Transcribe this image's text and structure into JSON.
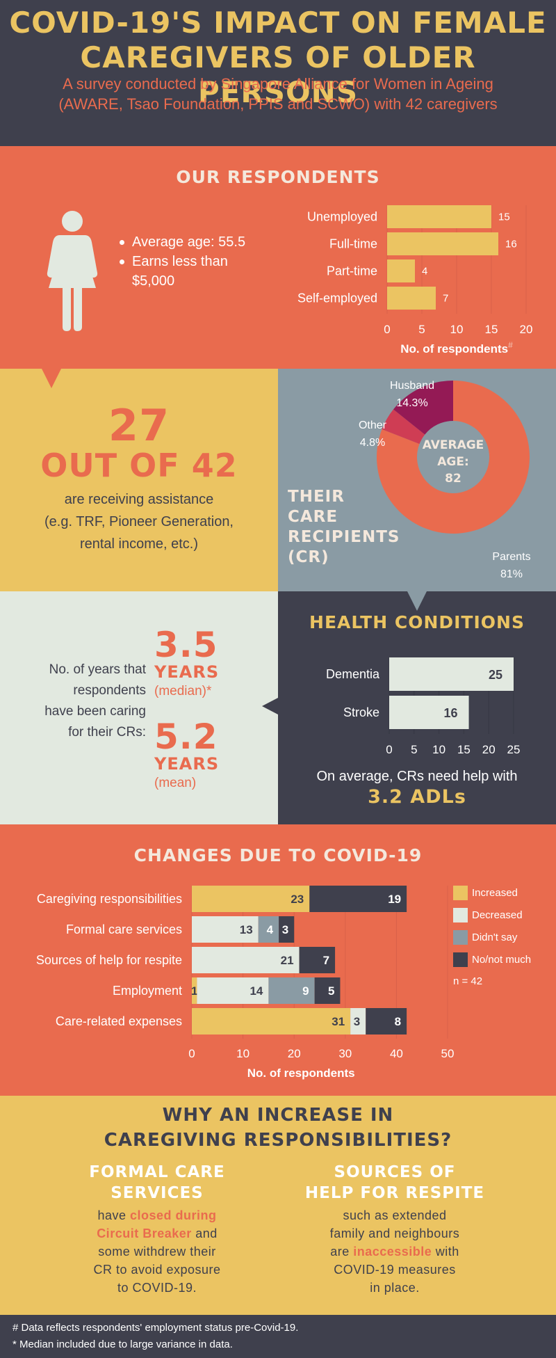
{
  "header": {
    "title_line1": "COVID-19'S IMPACT ON FEMALE",
    "title_line2": "CAREGIVERS OF OLDER PERSONS",
    "subtitle_line1": "A survey conducted by Singapore Alliance for Women in Ageing",
    "subtitle_line2": "(AWARE, Tsao Foundation, PPIS and SCWO) with 42 caregivers"
  },
  "respondents": {
    "heading": "OUR RESPONDENTS",
    "bullet1": "Average age: 55.5",
    "bullet2a": "Earns less than",
    "bullet2b": "$5,000"
  },
  "assistance": {
    "number": "27",
    "out_of": "OUT OF 42",
    "line1": "are receiving assistance",
    "line2": "(e.g. TRF, Pioneer Generation,",
    "line3": "rental income, etc.)"
  },
  "recipients": {
    "label_line1": "THEIR",
    "label_line2": "CARE",
    "label_line3": "RECIPIENTS",
    "label_line4": "(CR)",
    "center_line1": "AVERAGE",
    "center_line2": "AGE:",
    "center_line3": "82"
  },
  "years": {
    "q1": "No. of years that",
    "q2": "respondents",
    "q3": "have been caring",
    "q4": "for their CRs:",
    "median_value": "3.5",
    "median_unit": "YEARS",
    "median_label": "(median)*",
    "mean_value": "5.2",
    "mean_unit": "YEARS",
    "mean_label": "(mean)"
  },
  "health": {
    "heading": "HEALTH CONDITIONS",
    "avg_text": "On average, CRs need help with",
    "adl_text": "3.2 ADLs"
  },
  "changes": {
    "heading": "CHANGES DUE TO COVID-19"
  },
  "why": {
    "heading_line1": "WHY AN INCREASE IN",
    "heading_line2": "CAREGIVING RESPONSIBILITIES?",
    "col1_title1": "FORMAL CARE",
    "col1_title2": "SERVICES",
    "col1_t1": "have ",
    "col1_hl1": "closed during",
    "col1_hl2": "Circuit Breaker",
    "col1_t2": " and",
    "col1_t3": "some withdrew their",
    "col1_t4": "CR to avoid exposure",
    "col1_t5": "to COVID-19.",
    "col2_title1": "SOURCES OF",
    "col2_title2": "HELP FOR RESPITE",
    "col2_t1": "such as extended",
    "col2_t2": "family and neighbours",
    "col2_t3": "are ",
    "col2_hl": "inaccessible",
    "col2_t4": " with",
    "col2_t5": "COVID-19 measures",
    "col2_t6": "in place."
  },
  "footer": {
    "note1": "# Data reflects respondents' employment status pre-Covid-19.",
    "note2": " * Median included due to large variance in data."
  },
  "colors": {
    "dark": "#3f404d",
    "coral": "#e96b4e",
    "yellow": "#ebc462",
    "light": "#e2e9e0",
    "grey": "#8a9ba4",
    "purple": "#941a55",
    "red": "#cf3d54"
  },
  "chart_data": [
    {
      "type": "bar",
      "orientation": "horizontal",
      "categories": [
        "Unemployed",
        "Full-time",
        "Part-time",
        "Self-employed"
      ],
      "values": [
        15,
        16,
        4,
        7
      ],
      "xlabel": "No. of respondents",
      "xlabel_mark": "#",
      "xlim": [
        0,
        20
      ],
      "xticks": [
        0,
        5,
        10,
        15,
        20
      ]
    },
    {
      "type": "pie",
      "donut": true,
      "labels": [
        "Parents",
        "Other",
        "Husband"
      ],
      "values": [
        81,
        4.8,
        14.3
      ],
      "value_labels": [
        "81%",
        "4.8%",
        "14.3%"
      ]
    },
    {
      "type": "bar",
      "orientation": "horizontal",
      "categories": [
        "Dementia",
        "Stroke"
      ],
      "values": [
        25,
        16
      ],
      "xlim": [
        0,
        25
      ],
      "xticks": [
        0,
        5,
        10,
        15,
        20,
        25
      ]
    },
    {
      "type": "bar",
      "orientation": "horizontal",
      "stacked": true,
      "categories": [
        "Caregiving responsibilities",
        "Formal care services",
        "Sources of help for respite",
        "Employment",
        "Care-related expenses"
      ],
      "series": [
        {
          "name": "Increased",
          "values": [
            23,
            0,
            0,
            1,
            31
          ]
        },
        {
          "name": "Decreased",
          "values": [
            0,
            13,
            21,
            14,
            3
          ]
        },
        {
          "name": "Didn't say",
          "values": [
            0,
            4,
            0,
            9,
            0
          ]
        },
        {
          "name": "No/not much",
          "values": [
            19,
            3,
            7,
            5,
            8
          ]
        }
      ],
      "legend_note": "n = 42",
      "xlabel": "No. of respondents",
      "xlim": [
        0,
        50
      ],
      "xticks": [
        0,
        10,
        20,
        30,
        40,
        50
      ],
      "legend": "right"
    }
  ]
}
